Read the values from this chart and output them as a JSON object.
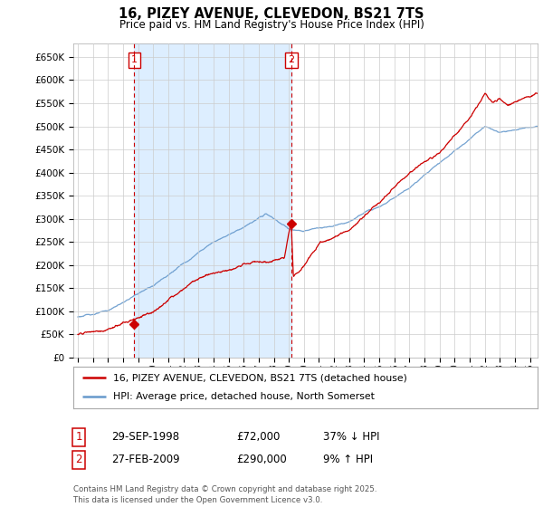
{
  "title": "16, PIZEY AVENUE, CLEVEDON, BS21 7TS",
  "subtitle": "Price paid vs. HM Land Registry's House Price Index (HPI)",
  "legend_line1": "16, PIZEY AVENUE, CLEVEDON, BS21 7TS (detached house)",
  "legend_line2": "HPI: Average price, detached house, North Somerset",
  "footer": "Contains HM Land Registry data © Crown copyright and database right 2025.\nThis data is licensed under the Open Government Licence v3.0.",
  "annotation1_label": "1",
  "annotation1_date": "29-SEP-1998",
  "annotation1_price": "£72,000",
  "annotation1_hpi": "37% ↓ HPI",
  "annotation2_label": "2",
  "annotation2_date": "27-FEB-2009",
  "annotation2_price": "£290,000",
  "annotation2_hpi": "9% ↑ HPI",
  "red_color": "#cc0000",
  "blue_color": "#6699cc",
  "shade_color": "#ddeeff",
  "background_color": "#ffffff",
  "grid_color": "#cccccc",
  "ylim": [
    0,
    680000
  ],
  "yticks": [
    0,
    50000,
    100000,
    150000,
    200000,
    250000,
    300000,
    350000,
    400000,
    450000,
    500000,
    550000,
    600000,
    650000
  ],
  "xstart_year": 1995,
  "xend_year": 2025,
  "purchase1_year": 1998.75,
  "purchase1_price": 72000,
  "purchase2_year": 2009.15,
  "purchase2_price": 290000
}
